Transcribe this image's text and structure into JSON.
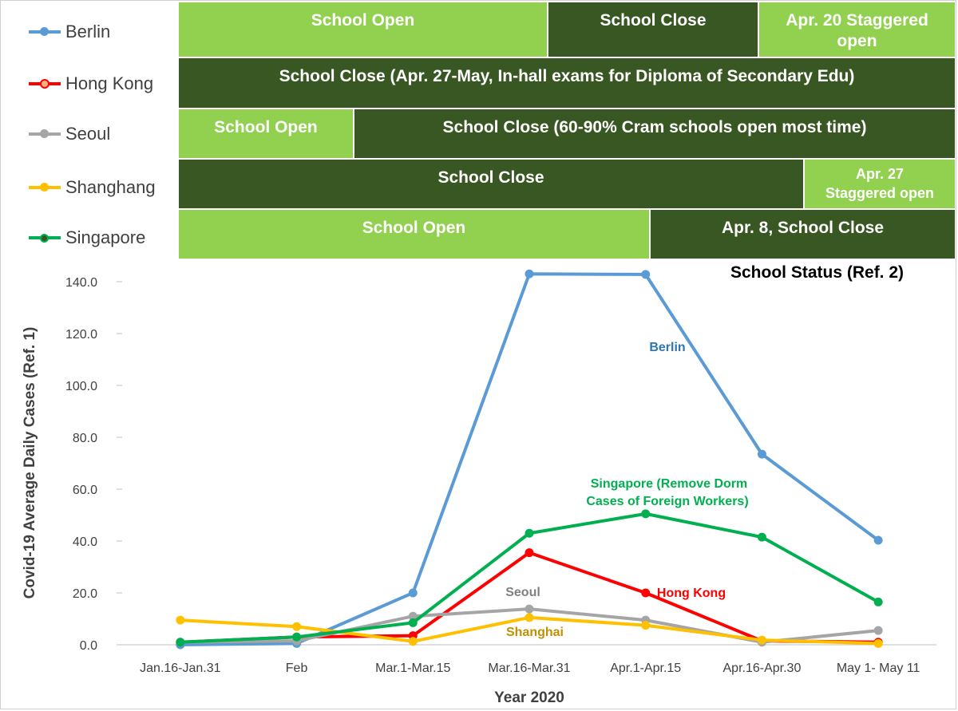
{
  "legend": [
    {
      "name": "Berlin",
      "color": "#5b9bd5"
    },
    {
      "name": "Hong Kong",
      "color": "#ff0000"
    },
    {
      "name": "Seoul",
      "color": "#a5a5a5"
    },
    {
      "name": "Shanghang",
      "color": "#ffc000"
    },
    {
      "name": "Singapore",
      "color": "#00b050"
    }
  ],
  "school_status": {
    "caption": "School Status (Ref. 2)",
    "rows": [
      {
        "city": "Berlin",
        "blocks": [
          {
            "label": "School Open",
            "state": "open"
          },
          {
            "label": "School Close",
            "state": "close"
          },
          {
            "label": "Apr. 20 Staggered open",
            "state": "open"
          }
        ]
      },
      {
        "city": "Hong Kong",
        "blocks": [
          {
            "label": "School Close (Apr. 27-May, In-hall exams for Diploma of Secondary Edu)",
            "state": "close"
          }
        ]
      },
      {
        "city": "Seoul",
        "blocks": [
          {
            "label": "School Open",
            "state": "open"
          },
          {
            "label": "School Close (60-90% Cram schools open most time)",
            "state": "close"
          }
        ]
      },
      {
        "city": "Shanghang",
        "blocks": [
          {
            "label": "School Close",
            "state": "close"
          },
          {
            "label": "Apr. 27 Staggered open",
            "state": "open"
          }
        ]
      },
      {
        "city": "Singapore",
        "blocks": [
          {
            "label": "School Open",
            "state": "open"
          },
          {
            "label": "Apr. 8, School Close",
            "state": "close"
          }
        ]
      }
    ],
    "colors": {
      "open": "#92d050",
      "close": "#385723"
    }
  },
  "chart_data": {
    "type": "line",
    "title": "",
    "xlabel": "Year 2020",
    "ylabel": "Covid-19 Average Daily Cases (Ref. 1)",
    "ylim": [
      0,
      140
    ],
    "yticks": [
      "0.0",
      "20.0",
      "40.0",
      "60.0",
      "80.0",
      "100.0",
      "120.0",
      "140.0"
    ],
    "categories": [
      "Jan.16-Jan.31",
      "Feb",
      "Mar.1-Mar.15",
      "Mar.16-Mar.31",
      "Apr.1-Apr.15",
      "Apr.16-Apr.30",
      "May 1- May 11"
    ],
    "series": [
      {
        "name": "Berlin",
        "color": "#5b9bd5",
        "values": [
          0.0,
          0.5,
          20.0,
          143.0,
          142.8,
          73.5,
          40.3
        ]
      },
      {
        "name": "Hong Kong",
        "color": "#ff0000",
        "values": [
          1.0,
          3.0,
          3.5,
          35.5,
          20.0,
          1.5,
          1.0
        ]
      },
      {
        "name": "Seoul",
        "color": "#a5a5a5",
        "values": [
          1.0,
          1.5,
          11.0,
          13.8,
          9.5,
          1.0,
          5.5
        ]
      },
      {
        "name": "Shanghai",
        "color": "#ffc000",
        "values": [
          9.5,
          7.0,
          1.3,
          10.5,
          7.5,
          1.8,
          0.5
        ]
      },
      {
        "name": "Singapore",
        "color": "#00b050",
        "values": [
          1.0,
          3.0,
          8.5,
          43.0,
          50.5,
          41.5,
          16.5
        ]
      }
    ],
    "annotations": [
      {
        "text": "Berlin",
        "series": "Berlin",
        "color": "#2e75b6"
      },
      {
        "text": "Singapore (Remove Dorm",
        "series": "Singapore",
        "color": "#00b050"
      },
      {
        "text": "Cases of Foreign Workers)",
        "series": "Singapore",
        "color": "#00b050"
      },
      {
        "text": "Hong Kong",
        "series": "Hong Kong",
        "color": "#ff0000"
      },
      {
        "text": "Seoul",
        "series": "Seoul",
        "color": "#808080"
      },
      {
        "text": "Shanghai",
        "series": "Shanghai",
        "color": "#bf9000"
      }
    ],
    "grid": false,
    "legend": "top-left"
  }
}
